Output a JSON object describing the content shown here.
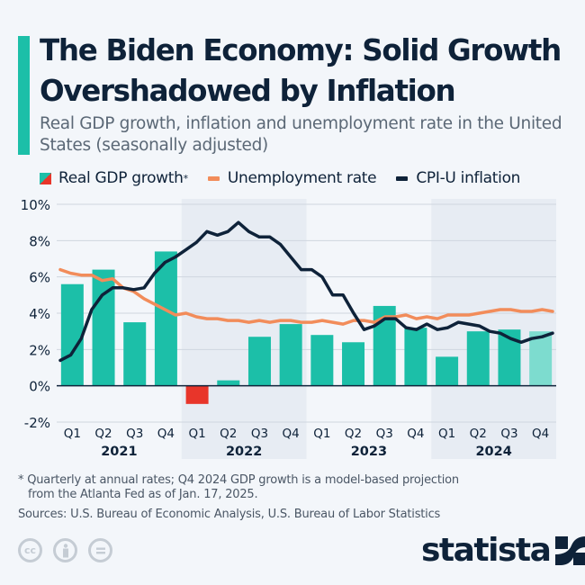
{
  "header": {
    "title": "The Biden Economy: Solid Growth Overshadowed by Inflation",
    "subtitle": "Real GDP growth, inflation and unemployment rate in the United States (seasonally adjusted)"
  },
  "legend": {
    "gdp": "Real GDP growth",
    "gdp_marker": "*",
    "unemployment": "Unemployment rate",
    "cpi": "CPI-U inflation"
  },
  "chart_data": {
    "type": "bar+line",
    "ylim": [
      -2,
      10
    ],
    "yticks": [
      "10%",
      "8%",
      "6%",
      "4%",
      "2%",
      "0%",
      "-2%"
    ],
    "ytick_values": [
      10,
      8,
      6,
      4,
      2,
      0,
      -2
    ],
    "grid": true,
    "years": [
      "2021",
      "2022",
      "2023",
      "2024"
    ],
    "quarters": [
      "Q1",
      "Q2",
      "Q3",
      "Q4"
    ],
    "shaded_years": [
      "2022",
      "2024"
    ],
    "gdp": {
      "name": "Real GDP growth",
      "values": [
        5.6,
        6.4,
        3.5,
        7.4,
        -1.0,
        0.3,
        2.7,
        3.4,
        2.8,
        2.4,
        4.4,
        3.2,
        1.6,
        3.0,
        3.1,
        3.0
      ],
      "projection_last": true
    },
    "unemployment": {
      "name": "Unemployment rate",
      "frequency": "monthly",
      "values": [
        6.4,
        6.2,
        6.1,
        6.1,
        5.8,
        5.9,
        5.4,
        5.2,
        4.8,
        4.5,
        4.2,
        3.9,
        4.0,
        3.8,
        3.7,
        3.7,
        3.6,
        3.6,
        3.5,
        3.6,
        3.5,
        3.6,
        3.6,
        3.5,
        3.5,
        3.6,
        3.5,
        3.4,
        3.6,
        3.6,
        3.5,
        3.8,
        3.8,
        3.9,
        3.7,
        3.8,
        3.7,
        3.9,
        3.9,
        3.9,
        4.0,
        4.1,
        4.2,
        4.2,
        4.1,
        4.1,
        4.2,
        4.1
      ]
    },
    "cpi": {
      "name": "CPI-U inflation",
      "frequency": "monthly",
      "values": [
        1.4,
        1.7,
        2.6,
        4.2,
        5.0,
        5.4,
        5.4,
        5.3,
        5.4,
        6.2,
        6.8,
        7.1,
        7.5,
        7.9,
        8.5,
        8.3,
        8.5,
        9.0,
        8.5,
        8.2,
        8.2,
        7.8,
        7.1,
        6.4,
        6.4,
        6.0,
        5.0,
        5.0,
        4.0,
        3.1,
        3.3,
        3.7,
        3.7,
        3.2,
        3.1,
        3.4,
        3.1,
        3.2,
        3.5,
        3.4,
        3.3,
        3.0,
        2.9,
        2.6,
        2.4,
        2.6,
        2.7,
        2.9
      ]
    }
  },
  "colors": {
    "gdp": "#1cbfa8",
    "gdp_negative": "#e8352a",
    "gdp_projection": "#7ddccf",
    "unemployment": "#f28c5a",
    "cpi": "#0e2239",
    "accent": "#1cbfa8"
  },
  "footer": {
    "note_line1": "* Quarterly at annual rates; Q4 2024 GDP growth is a model-based projection",
    "note_line2": "from the Atlanta Fed as of Jan. 17, 2025.",
    "sources": "Sources: U.S. Bureau of Economic Analysis, U.S. Bureau of Labor Statistics",
    "license_icons": [
      "cc-icon",
      "attribution-icon",
      "no-derivatives-icon"
    ],
    "logo": "statista"
  }
}
